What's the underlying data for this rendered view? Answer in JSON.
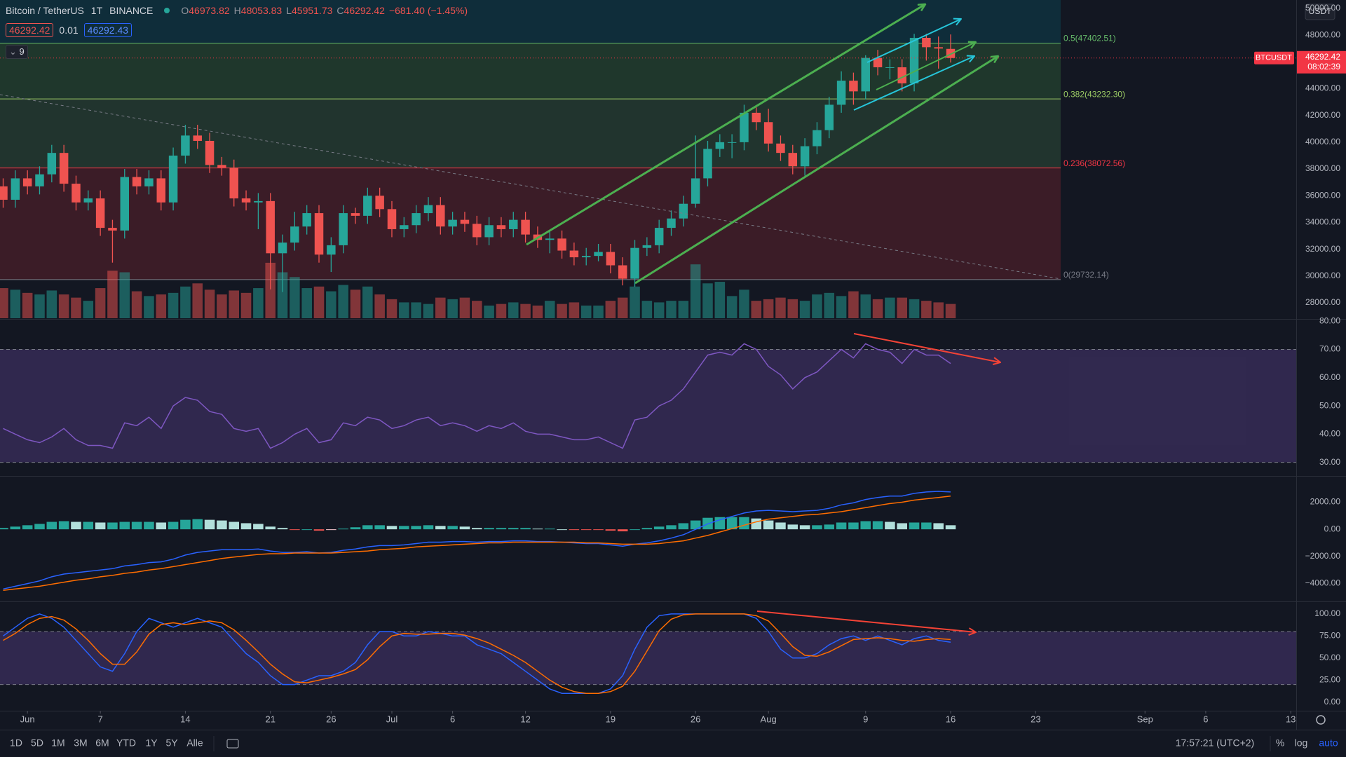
{
  "header": {
    "symbol": "Bitcoin / TetherUS",
    "interval": "1T",
    "exchange": "BINANCE",
    "ohlc_labels": [
      "O",
      "H",
      "L",
      "C"
    ],
    "change": "−681.40 (−1.45%)",
    "sell": "46292.42",
    "spread": "0.01",
    "buy": "46292.43",
    "indicator_count": "9"
  },
  "price_axis": {
    "currency": "USDT",
    "symbol_label": "BTCUSDT",
    "countdown": "08:02:39"
  },
  "toolbar": {
    "ranges": [
      "1D",
      "5D",
      "1M",
      "3M",
      "6M",
      "YTD",
      "1Y",
      "5Y",
      "Alle"
    ],
    "clock": "17:57:21 (UTC+2)",
    "options": [
      "%",
      "log",
      "auto"
    ]
  },
  "chart_data": [
    {
      "type": "candlestick",
      "up_color": "#26a69a",
      "down_color": "#ef5350",
      "xlim": [
        -0.26,
        106.45
      ],
      "xticks": [
        {
          "value": 2,
          "label": "Jun"
        },
        {
          "value": 8,
          "label": "7"
        },
        {
          "value": 15,
          "label": "14"
        },
        {
          "value": 22,
          "label": "21"
        },
        {
          "value": 27,
          "label": "26"
        },
        {
          "value": 32,
          "label": "Jul"
        },
        {
          "value": 37,
          "label": "6"
        },
        {
          "value": 43,
          "label": "12"
        },
        {
          "value": 50,
          "label": "19"
        },
        {
          "value": 57,
          "label": "26"
        },
        {
          "value": 63,
          "label": "Aug"
        },
        {
          "value": 71,
          "label": "9"
        },
        {
          "value": 78,
          "label": "16"
        },
        {
          "value": 85,
          "label": "23"
        },
        {
          "value": 94,
          "label": "Sep"
        },
        {
          "value": 99,
          "label": "6"
        },
        {
          "value": 106,
          "label": "13"
        }
      ],
      "ylim": [
        26846,
        50628
      ],
      "yticks": [
        {
          "value": 28000,
          "label": "28000.00"
        },
        {
          "value": 30000,
          "label": "30000.00"
        },
        {
          "value": 32000,
          "label": "32000.00"
        },
        {
          "value": 34000,
          "label": "34000.00"
        },
        {
          "value": 36000,
          "label": "36000.00"
        },
        {
          "value": 38000,
          "label": "38000.00"
        },
        {
          "value": 40000,
          "label": "40000.00"
        },
        {
          "value": 42000,
          "label": "42000.00"
        },
        {
          "value": 44000,
          "label": "44000.00"
        },
        {
          "value": 46000,
          "label": "46000.00"
        },
        {
          "value": 48000,
          "label": "48000.00"
        },
        {
          "value": 50000,
          "label": "50000.00"
        }
      ],
      "fib": [
        {
          "value": 47402.51,
          "label": "0.5(47402.51)",
          "color": "#66bb6a",
          "fill": "rgba(0,150,170,0.18)"
        },
        {
          "value": 43232.3,
          "label": "0.382(43232.30)",
          "color": "#9ccc65",
          "fill": "rgba(76,175,80,0.22)"
        },
        {
          "value": 38072.56,
          "label": "0.236(38072.56)",
          "color": "#f23645",
          "fill": "rgba(102,187,106,0.18)"
        },
        {
          "value": 29732.14,
          "label": "0(29732.14)",
          "color": "#787b86",
          "fill": "rgba(242,54,69,0.18)"
        }
      ],
      "open": [
        36700,
        35700,
        37300,
        36700,
        37600,
        39200,
        36900,
        35500,
        35800,
        33600,
        33400,
        37400,
        36700,
        37300,
        35500,
        39000,
        40500,
        40100,
        38300,
        38100,
        35800,
        35500,
        35600,
        31700,
        32500,
        33700,
        34700,
        31600,
        32300,
        34700,
        34500,
        36000,
        35000,
        33500,
        33800,
        34700,
        35300,
        33700,
        34200,
        33900,
        32900,
        33800,
        33500,
        34200,
        33100,
        32700,
        32800,
        31900,
        31400,
        31500,
        31800,
        30800,
        29800,
        32100,
        32300,
        33600,
        34300,
        35400,
        37300,
        39500,
        40000,
        40000,
        42200,
        41500,
        39900,
        39200,
        38200,
        39700,
        40900,
        42800,
        44600,
        43800,
        46300,
        45600,
        45600,
        44400,
        47800,
        47100,
        46973.82
      ],
      "high": [
        37300,
        37900,
        37900,
        38200,
        39800,
        39800,
        37500,
        36400,
        36400,
        34200,
        38000,
        38000,
        37900,
        37900,
        39600,
        41300,
        41300,
        40700,
        38900,
        38700,
        36400,
        36200,
        36200,
        33100,
        34800,
        35300,
        35300,
        32900,
        35300,
        35100,
        36600,
        36600,
        35600,
        34400,
        35300,
        35900,
        35900,
        34800,
        34800,
        34500,
        34400,
        34400,
        34800,
        34800,
        33700,
        33400,
        33400,
        32500,
        32100,
        32400,
        32400,
        31400,
        32700,
        32900,
        34200,
        34900,
        36000,
        40500,
        40100,
        40600,
        40600,
        42800,
        42600,
        42500,
        40500,
        39800,
        40300,
        41500,
        43400,
        45300,
        45200,
        46500,
        46900,
        46200,
        46200,
        48100,
        48100,
        47900,
        48053.83
      ],
      "low": [
        35100,
        35100,
        36100,
        36100,
        37000,
        36300,
        34900,
        34900,
        33000,
        31000,
        32800,
        36100,
        36100,
        34900,
        34900,
        38400,
        39500,
        37700,
        37500,
        35200,
        34900,
        33500,
        29000,
        28800,
        31900,
        33100,
        31000,
        30300,
        31700,
        33900,
        33900,
        34400,
        32900,
        32900,
        33200,
        34100,
        33100,
        33100,
        33300,
        32300,
        32300,
        32900,
        32900,
        32500,
        32100,
        31700,
        31300,
        30800,
        30800,
        31100,
        30200,
        29300,
        29200,
        31500,
        31700,
        33000,
        33700,
        35100,
        36700,
        38900,
        38800,
        39400,
        40900,
        39300,
        38600,
        37600,
        37500,
        39100,
        40300,
        42200,
        42800,
        43200,
        45000,
        44700,
        43800,
        43800,
        46100,
        45500,
        45951.73
      ],
      "close": [
        35700,
        37300,
        36700,
        37600,
        39200,
        36900,
        35500,
        35800,
        33600,
        33400,
        37400,
        36700,
        37300,
        35500,
        39000,
        40500,
        40100,
        38300,
        38100,
        35800,
        35500,
        35600,
        31700,
        32500,
        33700,
        34700,
        31600,
        32300,
        34700,
        34500,
        36000,
        35000,
        33500,
        33800,
        34700,
        35300,
        33700,
        34200,
        33900,
        32900,
        33800,
        33500,
        34200,
        33100,
        32700,
        32800,
        31900,
        31400,
        31500,
        31800,
        30800,
        29800,
        32100,
        32300,
        33600,
        34300,
        35400,
        37300,
        39500,
        40000,
        40000,
        42200,
        41500,
        39900,
        39200,
        38200,
        39700,
        40900,
        42800,
        44600,
        43800,
        46300,
        45600,
        45600,
        44400,
        47800,
        47100,
        47000,
        46292.42
      ],
      "volume": [
        38,
        36,
        32,
        30,
        35,
        30,
        26,
        22,
        38,
        60,
        58,
        34,
        28,
        30,
        32,
        40,
        44,
        36,
        30,
        35,
        32,
        38,
        70,
        58,
        52,
        38,
        40,
        34,
        42,
        36,
        40,
        30,
        24,
        20,
        20,
        18,
        26,
        24,
        26,
        22,
        16,
        18,
        20,
        18,
        16,
        22,
        18,
        20,
        16,
        16,
        22,
        26,
        40,
        22,
        20,
        22,
        22,
        68,
        44,
        46,
        28,
        36,
        22,
        24,
        26,
        24,
        22,
        30,
        32,
        28,
        34,
        30,
        24,
        26,
        26,
        24,
        22,
        20,
        18
      ],
      "volume_up_color": "rgba(38,166,154,0.5)",
      "volume_down_color": "rgba(239,83,80,0.5)",
      "last_price_color": "#f23645"
    },
    {
      "type": "line",
      "ylim": [
        25.45,
        80.3
      ],
      "yticks": [
        {
          "value": 30,
          "label": "30.00"
        },
        {
          "value": 40,
          "label": "40.00"
        },
        {
          "value": 50,
          "label": "50.00"
        },
        {
          "value": 60,
          "label": "60.00"
        },
        {
          "value": 70,
          "label": "70.00"
        },
        {
          "value": 80,
          "label": "80.00"
        }
      ],
      "band": [
        30,
        70
      ],
      "band_fill": "rgba(126,87,194,0.28)",
      "series": [
        {
          "color": "#7e57c2",
          "values": [
            42,
            40,
            38,
            37,
            39,
            42,
            38,
            36,
            36,
            35,
            44,
            43,
            46,
            42,
            50,
            53,
            52,
            48,
            47,
            42,
            41,
            42,
            35,
            37,
            40,
            42,
            37,
            38,
            44,
            43,
            46,
            45,
            42,
            43,
            45,
            46,
            43,
            44,
            43,
            41,
            43,
            42,
            44,
            41,
            40,
            40,
            39,
            38,
            38,
            39,
            37,
            35,
            45,
            46,
            50,
            52,
            56,
            62,
            68,
            69,
            68,
            72,
            70,
            64,
            61,
            56,
            60,
            62,
            66,
            70,
            67,
            72,
            70,
            69,
            65,
            70,
            68,
            68,
            65
          ]
        }
      ]
    },
    {
      "type": "macd",
      "ylim": [
        -5263,
        3832
      ],
      "yticks": [
        {
          "value": -4000,
          "label": "−4000.00"
        },
        {
          "value": -2000,
          "label": "−2000.00"
        },
        {
          "value": 0,
          "label": "0.00"
        },
        {
          "value": 2000,
          "label": "2000.00"
        }
      ],
      "histogram": {
        "up_color": "#26a69a",
        "up_fading_color": "#b2dfdb",
        "down_color": "#ef5350",
        "down_fading_color": "#ffcdd2",
        "values": [
          100,
          200,
          300,
          400,
          550,
          600,
          550,
          550,
          500,
          500,
          550,
          550,
          550,
          500,
          550,
          700,
          750,
          700,
          650,
          550,
          450,
          400,
          200,
          100,
          -50,
          0,
          -100,
          -50,
          50,
          150,
          300,
          300,
          250,
          250,
          250,
          300,
          250,
          250,
          200,
          100,
          100,
          100,
          100,
          100,
          50,
          50,
          0,
          -50,
          -50,
          -50,
          -100,
          -150,
          0,
          100,
          200,
          300,
          450,
          650,
          850,
          900,
          900,
          900,
          800,
          650,
          500,
          350,
          300,
          300,
          350,
          500,
          500,
          600,
          600,
          550,
          450,
          500,
          500,
          450,
          300
        ]
      },
      "series": [
        {
          "color": "#2962ff",
          "values": [
            -4400,
            -4200,
            -4000,
            -3800,
            -3500,
            -3300,
            -3200,
            -3100,
            -3000,
            -2900,
            -2700,
            -2600,
            -2450,
            -2400,
            -2200,
            -1900,
            -1700,
            -1600,
            -1500,
            -1500,
            -1500,
            -1450,
            -1600,
            -1700,
            -1700,
            -1650,
            -1750,
            -1700,
            -1550,
            -1450,
            -1300,
            -1200,
            -1200,
            -1150,
            -1050,
            -950,
            -950,
            -900,
            -900,
            -950,
            -900,
            -900,
            -850,
            -850,
            -900,
            -900,
            -950,
            -1000,
            -1050,
            -1050,
            -1150,
            -1250,
            -1100,
            -1000,
            -850,
            -650,
            -400,
            0,
            400,
            700,
            950,
            1200,
            1350,
            1400,
            1350,
            1300,
            1350,
            1400,
            1550,
            1800,
            1950,
            2200,
            2350,
            2450,
            2450,
            2650,
            2750,
            2800,
            2750
          ]
        },
        {
          "color": "#ff6d00",
          "values": [
            -4500,
            -4400,
            -4300,
            -4200,
            -4050,
            -3900,
            -3750,
            -3650,
            -3500,
            -3400,
            -3250,
            -3150,
            -3000,
            -2900,
            -2750,
            -2600,
            -2450,
            -2300,
            -2150,
            -2050,
            -1950,
            -1850,
            -1800,
            -1800,
            -1750,
            -1750,
            -1750,
            -1750,
            -1700,
            -1650,
            -1600,
            -1500,
            -1450,
            -1400,
            -1300,
            -1250,
            -1200,
            -1150,
            -1100,
            -1050,
            -1000,
            -1000,
            -950,
            -950,
            -950,
            -950,
            -950,
            -950,
            -1000,
            -1000,
            -1050,
            -1100,
            -1100,
            -1100,
            -1050,
            -950,
            -850,
            -650,
            -450,
            -200,
            50,
            300,
            550,
            750,
            850,
            950,
            1050,
            1100,
            1200,
            1300,
            1450,
            1600,
            1750,
            1900,
            2000,
            2150,
            2250,
            2350,
            2450
          ]
        }
      ]
    },
    {
      "type": "line",
      "ylim": [
        -9.7,
        112.6
      ],
      "yticks": [
        {
          "value": 0,
          "label": "0.00"
        },
        {
          "value": 25,
          "label": "25.00"
        },
        {
          "value": 50,
          "label": "50.00"
        },
        {
          "value": 75,
          "label": "75.00"
        },
        {
          "value": 100,
          "label": "100.00"
        }
      ],
      "band": [
        20,
        80
      ],
      "band_fill": "rgba(126,87,194,0.28)",
      "series": [
        {
          "color": "#2962ff",
          "values": [
            75,
            85,
            95,
            100,
            95,
            85,
            70,
            55,
            40,
            35,
            55,
            80,
            95,
            90,
            85,
            90,
            95,
            90,
            85,
            70,
            55,
            45,
            30,
            20,
            20,
            25,
            30,
            30,
            35,
            45,
            65,
            80,
            80,
            75,
            75,
            80,
            78,
            75,
            75,
            65,
            60,
            55,
            45,
            35,
            25,
            15,
            10,
            10,
            10,
            10,
            15,
            30,
            60,
            85,
            98,
            100,
            100,
            100,
            100,
            100,
            100,
            100,
            95,
            80,
            60,
            50,
            50,
            55,
            65,
            72,
            75,
            70,
            75,
            70,
            65,
            72,
            75,
            70,
            68
          ]
        },
        {
          "color": "#ff6d00",
          "values": [
            70,
            78,
            88,
            95,
            97,
            93,
            83,
            70,
            55,
            43,
            43,
            57,
            77,
            88,
            90,
            88,
            90,
            92,
            90,
            82,
            70,
            57,
            43,
            32,
            23,
            22,
            25,
            28,
            32,
            37,
            48,
            63,
            75,
            78,
            77,
            77,
            78,
            78,
            76,
            72,
            67,
            60,
            53,
            45,
            35,
            25,
            17,
            12,
            10,
            10,
            12,
            18,
            35,
            58,
            81,
            94,
            99,
            100,
            100,
            100,
            100,
            100,
            98,
            92,
            78,
            63,
            53,
            52,
            57,
            64,
            71,
            72,
            73,
            72,
            70,
            69,
            71,
            72,
            71
          ]
        }
      ]
    }
  ]
}
